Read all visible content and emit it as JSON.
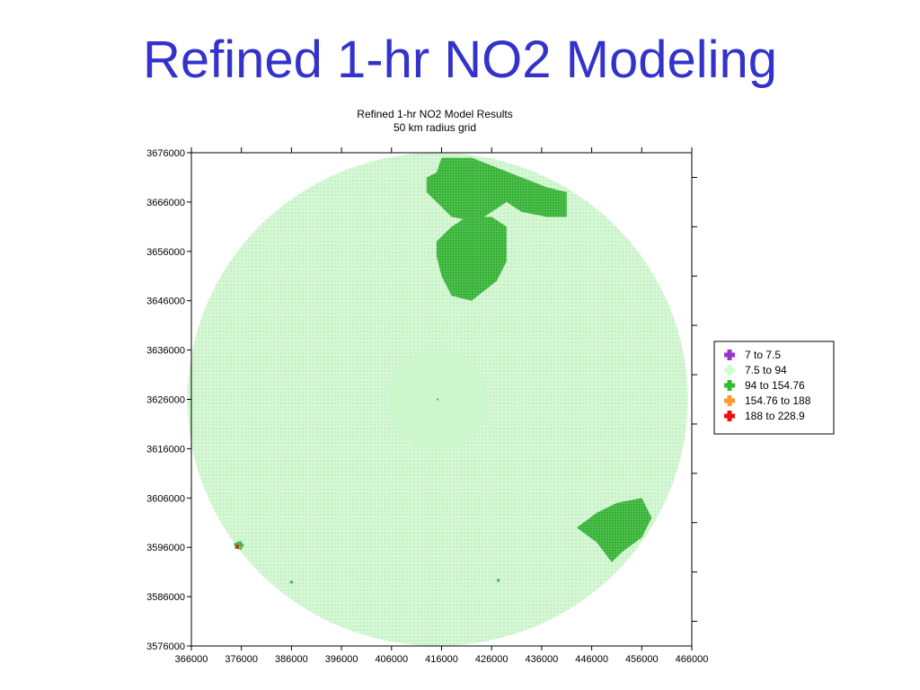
{
  "slide": {
    "title": "Refined 1-hr NO2 Modeling"
  },
  "chart_data": {
    "type": "scatter",
    "title": "Refined 1-hr NO2 Model Results",
    "subtitle": "50 km radius grid",
    "xlim": [
      366000,
      466000
    ],
    "ylim": [
      3576000,
      3676000
    ],
    "x_ticks": [
      366000,
      376000,
      386000,
      396000,
      406000,
      416000,
      426000,
      436000,
      446000,
      456000,
      466000
    ],
    "y_ticks": [
      3576000,
      3586000,
      3596000,
      3606000,
      3616000,
      3626000,
      3636000,
      3646000,
      3656000,
      3666000,
      3676000
    ],
    "grid": false,
    "legend_position": "right",
    "receptor_grid": {
      "center": [
        415200,
        3626000
      ],
      "radius_m": 50000,
      "inner_region_radius_m": 10000
    },
    "legend": [
      {
        "label": "7  to  7.5",
        "color": "#9933cc"
      },
      {
        "label": "7.5  to  94",
        "color": "#ccffcc"
      },
      {
        "label": "94  to  154.76",
        "color": "#33bb33"
      },
      {
        "label": "154.76  to  188",
        "color": "#ff9933"
      },
      {
        "label": "188  to  228.9",
        "color": "#ee1111"
      }
    ],
    "regions": [
      {
        "name": "94  to  154.76",
        "color": "#33bb33",
        "polygon": [
          [
            416000,
            3675000
          ],
          [
            422000,
            3675000
          ],
          [
            427000,
            3673000
          ],
          [
            432000,
            3671000
          ],
          [
            437000,
            3669000
          ],
          [
            441000,
            3668000
          ],
          [
            441000,
            3663000
          ],
          [
            437000,
            3663000
          ],
          [
            432000,
            3664000
          ],
          [
            429000,
            3666000
          ],
          [
            426000,
            3664000
          ],
          [
            423000,
            3662000
          ],
          [
            418000,
            3663000
          ],
          [
            413000,
            3668000
          ],
          [
            413000,
            3671000
          ],
          [
            415000,
            3672000
          ]
        ]
      },
      {
        "name": "94  to  154.76",
        "color": "#33bb33",
        "polygon": [
          [
            421000,
            3663000
          ],
          [
            426000,
            3663000
          ],
          [
            429000,
            3661000
          ],
          [
            429000,
            3654000
          ],
          [
            427000,
            3650000
          ],
          [
            422000,
            3646000
          ],
          [
            418000,
            3647000
          ],
          [
            416000,
            3651000
          ],
          [
            415000,
            3655000
          ],
          [
            415000,
            3658000
          ],
          [
            418000,
            3661000
          ]
        ]
      },
      {
        "name": "94  to  154.76",
        "color": "#33bb33",
        "polygon": [
          [
            451000,
            3605000
          ],
          [
            456000,
            3606000
          ],
          [
            458000,
            3602000
          ],
          [
            456000,
            3598000
          ],
          [
            452000,
            3595000
          ],
          [
            450000,
            3593000
          ],
          [
            447000,
            3597000
          ],
          [
            443000,
            3600000
          ],
          [
            447000,
            3603000
          ]
        ]
      },
      {
        "name": "94  to  154.76",
        "color": "#33bb33",
        "polygon": [
          [
            374500,
            3596800
          ],
          [
            375800,
            3597300
          ],
          [
            376500,
            3596500
          ],
          [
            376000,
            3595500
          ],
          [
            374700,
            3595700
          ]
        ]
      },
      {
        "name": "94  to  154.76",
        "color": "#33bb33",
        "polygon": [
          [
            385700,
            3589200
          ],
          [
            386300,
            3589200
          ],
          [
            386300,
            3588700
          ],
          [
            385700,
            3588700
          ]
        ]
      },
      {
        "name": "94  to  154.76",
        "color": "#33bb33",
        "polygon": [
          [
            427100,
            3589600
          ],
          [
            427600,
            3589600
          ],
          [
            427600,
            3589000
          ],
          [
            427100,
            3589000
          ]
        ]
      },
      {
        "name": "188  to  228.9",
        "color": "#ee1111",
        "polygon": [
          [
            375000,
            3596500
          ],
          [
            375500,
            3596500
          ],
          [
            375500,
            3595800
          ],
          [
            375000,
            3595800
          ]
        ]
      },
      {
        "name": "154.76  to  188",
        "color": "#ff9933",
        "polygon": [
          [
            375500,
            3596300
          ],
          [
            375900,
            3596300
          ],
          [
            375900,
            3595900
          ],
          [
            375500,
            3595900
          ]
        ]
      }
    ]
  }
}
